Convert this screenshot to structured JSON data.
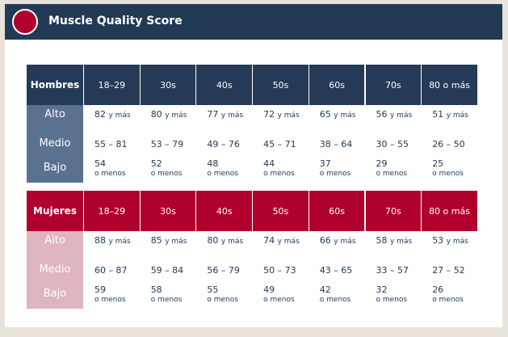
{
  "header": {
    "title": "Muscle Quality Score"
  },
  "tables": [
    {
      "label": "Hombres",
      "headers": [
        "18–29",
        "30s",
        "40s",
        "50s",
        "60s",
        "70s",
        "80 o más"
      ],
      "rows": [
        {
          "label": "Alto",
          "cells": [
            {
              "value": "82",
              "unit": "y más"
            },
            {
              "value": "80",
              "unit": "y más"
            },
            {
              "value": "77",
              "unit": "y más"
            },
            {
              "value": "72",
              "unit": "y más"
            },
            {
              "value": "65",
              "unit": "y más"
            },
            {
              "value": "56",
              "unit": "y más"
            },
            {
              "value": "51",
              "unit": "y más"
            }
          ]
        },
        {
          "label": "Medio",
          "cells": [
            {
              "value": "55 – 81"
            },
            {
              "value": "53 – 79"
            },
            {
              "value": "49 – 76"
            },
            {
              "value": "45 – 71"
            },
            {
              "value": "38 – 64"
            },
            {
              "value": "30 – 55"
            },
            {
              "value": "26 – 50"
            }
          ]
        },
        {
          "label": "Bajo",
          "cells": [
            {
              "value": "54",
              "unit": "o menos"
            },
            {
              "value": "52",
              "unit": "o menos"
            },
            {
              "value": "48",
              "unit": "o menos"
            },
            {
              "value": "44",
              "unit": "o menos"
            },
            {
              "value": "37",
              "unit": "o menos"
            },
            {
              "value": "29",
              "unit": "o menos"
            },
            {
              "value": "25",
              "unit": "o menos"
            }
          ]
        }
      ]
    },
    {
      "label": "Mujeres",
      "headers": [
        "18–29",
        "30s",
        "40s",
        "50s",
        "60s",
        "70s",
        "80 o más"
      ],
      "rows": [
        {
          "label": "Alto",
          "cells": [
            {
              "value": "88",
              "unit": "y más"
            },
            {
              "value": "85",
              "unit": "y más"
            },
            {
              "value": "80",
              "unit": "y más"
            },
            {
              "value": "74",
              "unit": "y más"
            },
            {
              "value": "66",
              "unit": "y más"
            },
            {
              "value": "58",
              "unit": "y más"
            },
            {
              "value": "53",
              "unit": "y más"
            }
          ]
        },
        {
          "label": "Medio",
          "cells": [
            {
              "value": "60 – 87"
            },
            {
              "value": "59 – 84"
            },
            {
              "value": "56 – 79"
            },
            {
              "value": "50 – 73"
            },
            {
              "value": "43 – 65"
            },
            {
              "value": "33 – 57"
            },
            {
              "value": "27 – 52"
            }
          ]
        },
        {
          "label": "Bajo",
          "cells": [
            {
              "value": "59",
              "unit": "o menos"
            },
            {
              "value": "58",
              "unit": "o menos"
            },
            {
              "value": "55",
              "unit": "o menos"
            },
            {
              "value": "49",
              "unit": "o menos"
            },
            {
              "value": "42",
              "unit": "o menos"
            },
            {
              "value": "32",
              "unit": "o menos"
            },
            {
              "value": "26",
              "unit": "o menos"
            }
          ]
        }
      ]
    }
  ]
}
